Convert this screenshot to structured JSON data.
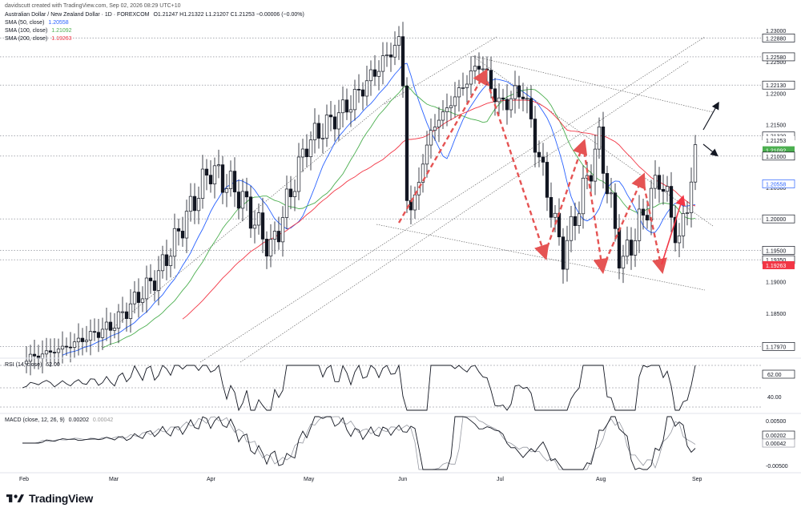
{
  "header": {
    "attribution": "davidscutt created with TradingView.com, Sep 02, 2026 08:29 UTC+10",
    "symbol": "Australian Dollar / New Zealand Dollar · 1D · FOREXCOM",
    "ohlc": "O1.21247 H1.21322 L1.21207 C1.21253 −0.00006 (−0.00%)",
    "sma50_label": "SMA (50, close)",
    "sma50_value": "1.20558",
    "sma100_label": "SMA (100, close)",
    "sma100_value": "1.21092",
    "sma200_label": "SMA (200, close)",
    "sma200_value": "1.19263",
    "rsi_label": "RSI (14, close)",
    "rsi_value": "62.00",
    "macd_label": "MACD (close, 12, 26, 9)",
    "macd_value1": "0.00202",
    "macd_value2": "0.00042"
  },
  "footer": {
    "brand": "TradingView"
  },
  "colors": {
    "up": "#131722",
    "down": "#131722",
    "sma50": "#2962ff",
    "sma100": "#4caf50",
    "sma200": "#f23645",
    "arrow_red": "#e55353",
    "grid": "#b2b5be"
  },
  "chart_data": [
    {
      "type": "candlestick",
      "title": "Australian Dollar / New Zealand Dollar · 1D · FOREXCOM",
      "x_axis": {
        "type": "date",
        "ticks": [
          "Feb",
          "Mar",
          "Apr",
          "May",
          "Jun",
          "Jul",
          "Aug",
          "Sep"
        ]
      },
      "y_axis": {
        "ticks": [
          "1.23000",
          "1.22500",
          "1.22000",
          "1.21500",
          "1.21000",
          "1.20500",
          "1.20000",
          "1.19500",
          "1.19000",
          "1.18500",
          "1.18000"
        ],
        "range": [
          1.1765,
          1.2315
        ]
      },
      "price_labels": [
        {
          "value": 1.2288,
          "text": "1.22880",
          "style": "outline"
        },
        {
          "value": 1.2258,
          "text": "1.22580",
          "style": "outline"
        },
        {
          "value": 1.2213,
          "text": "1.22130",
          "style": "outline"
        },
        {
          "value": 1.2132,
          "text": "1.21320",
          "style": "outline"
        },
        {
          "value": 1.21253,
          "text": "1.21253",
          "style": "plain"
        },
        {
          "value": 1.21092,
          "text": "1.21092",
          "style": "green"
        },
        {
          "value": 1.21,
          "text": "1.21000",
          "style": "outline"
        },
        {
          "value": 1.20558,
          "text": "1.20558",
          "style": "blue"
        },
        {
          "value": 1.2,
          "text": "1.20000",
          "style": "outline"
        },
        {
          "value": 1.195,
          "text": "1.19500",
          "style": "outline"
        },
        {
          "value": 1.1935,
          "text": "1.19350",
          "style": "outline"
        },
        {
          "value": 1.19263,
          "text": "1.19263",
          "style": "red"
        },
        {
          "value": 1.1797,
          "text": "1.17970",
          "style": "outline"
        }
      ],
      "horizontal_levels": [
        1.2288,
        1.2258,
        1.2213,
        1.2132,
        1.21,
        1.2,
        1.195,
        1.1935,
        1.1797
      ],
      "ohlc_close_path": [
        [
          "Feb-01",
          1.1775
        ],
        [
          "Feb-15",
          1.1795
        ],
        [
          "Mar-01",
          1.183
        ],
        [
          "Mar-15",
          1.191
        ],
        [
          "Apr-01",
          1.208
        ],
        [
          "Apr-10",
          1.204
        ],
        [
          "Apr-20",
          1.195
        ],
        [
          "May-01",
          1.212
        ],
        [
          "May-15",
          1.2185
        ],
        [
          "Jun-01",
          1.2288
        ],
        [
          "Jun-03",
          1.199
        ],
        [
          "Jun-10",
          1.214
        ],
        [
          "Jun-25",
          1.225
        ],
        [
          "Jul-01",
          1.218
        ],
        [
          "Jul-08",
          1.2205
        ],
        [
          "Jul-20",
          1.194
        ],
        [
          "Jul-31",
          1.2125
        ],
        [
          "Aug-08",
          1.1925
        ],
        [
          "Aug-20",
          1.207
        ],
        [
          "Aug-26",
          1.196
        ],
        [
          "Sep-02",
          1.21253
        ]
      ],
      "series": [
        {
          "name": "SMA (50, close)",
          "color": "#2962ff",
          "last": 1.20558
        },
        {
          "name": "SMA (100, close)",
          "color": "#4caf50",
          "last": 1.21092
        },
        {
          "name": "SMA (200, close)",
          "color": "#f23645",
          "last": 1.19263
        }
      ]
    },
    {
      "type": "line",
      "title": "RSI (14, close)",
      "y_axis": {
        "ticks": [
          "62.00",
          "40.00"
        ]
      },
      "last": 62.0
    },
    {
      "type": "line",
      "title": "MACD (close, 12, 26, 9)",
      "y_axis": {
        "ticks": [
          "0.00500",
          "0.00202",
          "0.00042",
          "-0.00500"
        ]
      },
      "series": [
        {
          "last": 0.00202
        },
        {
          "last": 0.00042
        }
      ]
    }
  ]
}
